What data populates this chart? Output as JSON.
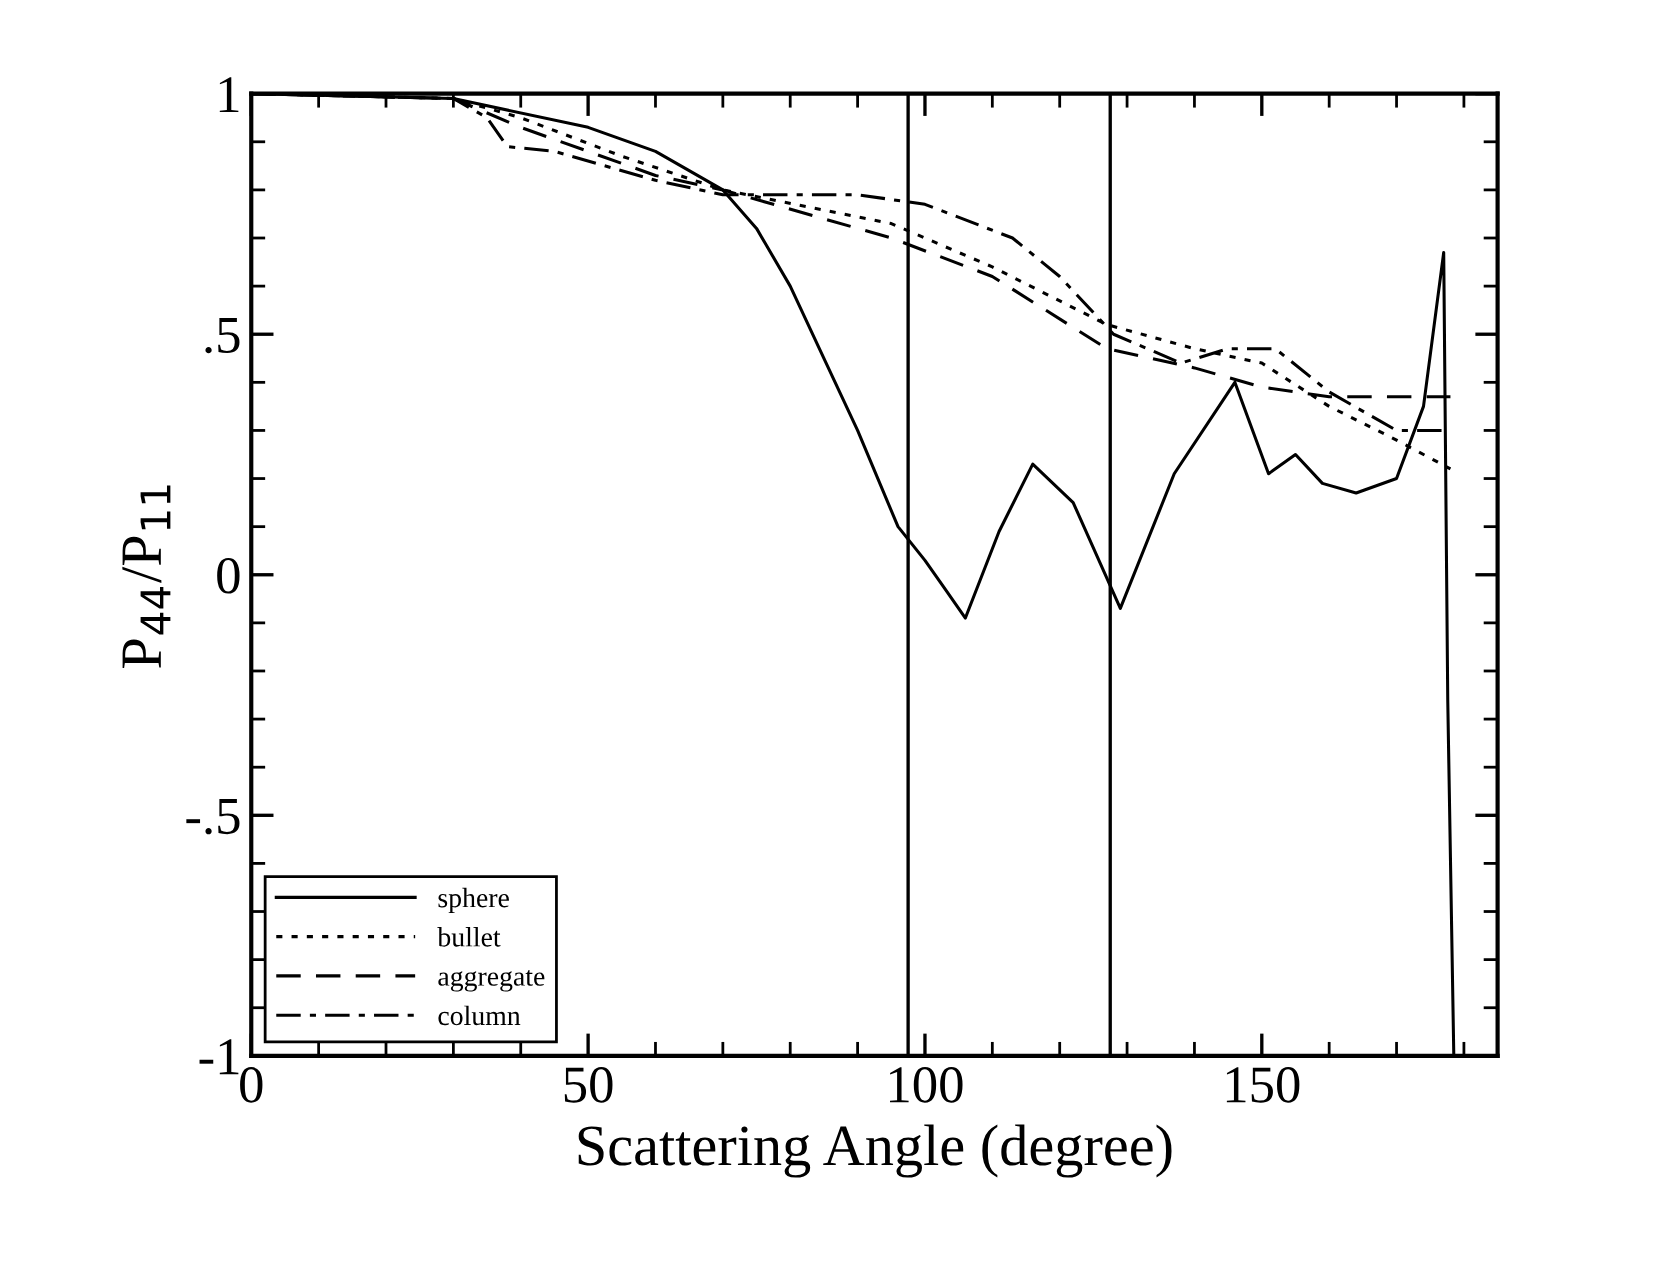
{
  "chart_data": {
    "type": "line",
    "xlabel": "Scattering Angle (degree)",
    "ylabel": "P$_{44}$/P$_{11}$",
    "xlim": [
      0,
      185
    ],
    "ylim": [
      -1,
      1
    ],
    "xticks": [
      0,
      50,
      100,
      150
    ],
    "yticks": [
      {
        "value": -1,
        "label": "-1"
      },
      {
        "value": -0.5,
        "label": "-.5"
      },
      0,
      {
        "value": 0.5,
        "label": ".5"
      },
      1
    ],
    "grid": false,
    "legend": "bottom left",
    "ref_lines": [
      {
        "axis": "x",
        "value": 97.5,
        "color": "#000000"
      },
      {
        "axis": "x",
        "value": 127.5,
        "color": "#000000"
      }
    ],
    "series": [
      {
        "name": "sphere",
        "color": "#000000",
        "line_style": "solid",
        "x": [
          0,
          30,
          50,
          60,
          70,
          75,
          80,
          85,
          90,
          96,
          100,
          103,
          106,
          111,
          116,
          122,
          129,
          137,
          146,
          151,
          155,
          159,
          164,
          170,
          174,
          177,
          177.6,
          178.5
        ],
        "values": [
          1,
          0.99,
          0.93,
          0.88,
          0.8,
          0.72,
          0.6,
          0.45,
          0.3,
          0.1,
          0.03,
          -0.03,
          -0.09,
          0.09,
          0.23,
          0.15,
          -0.07,
          0.21,
          0.4,
          0.21,
          0.25,
          0.19,
          0.17,
          0.2,
          0.35,
          0.67,
          -0.26,
          -1
        ]
      },
      {
        "name": "bullet",
        "color": "#000000",
        "line_style": "dotted",
        "x": [
          0,
          30,
          40,
          55,
          70,
          95,
          110,
          127,
          140,
          150,
          160,
          170,
          178
        ],
        "values": [
          1,
          0.99,
          0.95,
          0.87,
          0.8,
          0.73,
          0.64,
          0.52,
          0.47,
          0.44,
          0.35,
          0.28,
          0.22
        ]
      },
      {
        "name": "aggregate",
        "color": "#000000",
        "line_style": "dashed",
        "x": [
          0,
          30,
          40,
          60,
          70,
          95,
          110,
          127,
          140,
          150,
          160,
          170,
          178
        ],
        "values": [
          1,
          0.99,
          0.93,
          0.83,
          0.8,
          0.7,
          0.62,
          0.47,
          0.43,
          0.39,
          0.37,
          0.37,
          0.37
        ]
      },
      {
        "name": "column",
        "color": "#000000",
        "line_style": "dashdot",
        "x": [
          0,
          30,
          35,
          38,
          45,
          60,
          70,
          90,
          100,
          113,
          120,
          128,
          138,
          145,
          152,
          160,
          170,
          178
        ],
        "values": [
          1,
          0.99,
          0.95,
          0.89,
          0.88,
          0.82,
          0.79,
          0.79,
          0.77,
          0.7,
          0.62,
          0.5,
          0.44,
          0.47,
          0.47,
          0.38,
          0.3,
          0.3
        ]
      }
    ]
  }
}
